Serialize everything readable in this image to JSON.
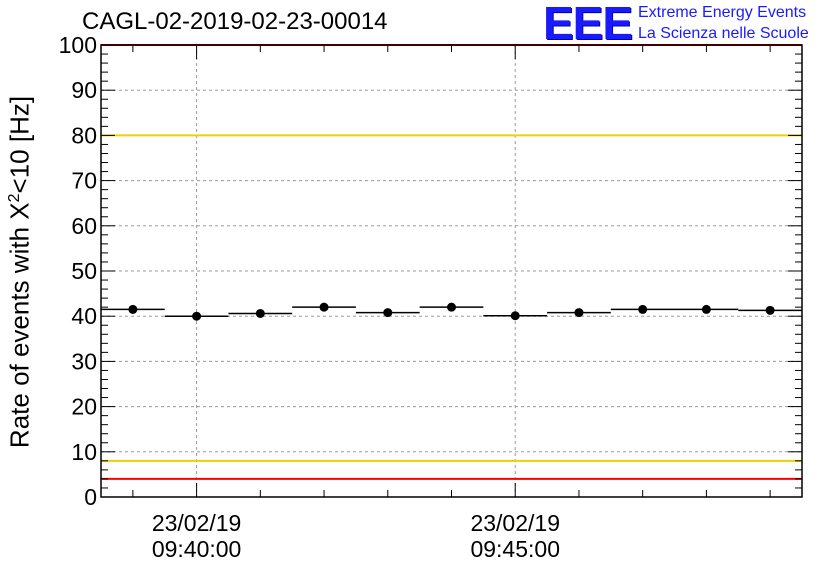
{
  "title": "CAGL-02-2019-02-23-00014",
  "logo": {
    "mark": "EEE",
    "line1": "Extreme Energy Events",
    "line2": "La Scienza nelle Scuole"
  },
  "colors": {
    "limit_line": "#ff0000",
    "warning_line": "#f0d000",
    "logo": "#1a1aff",
    "marker": "#000000"
  },
  "chart_data": {
    "type": "scatter",
    "title": "CAGL-02-2019-02-23-00014",
    "ylabel_parts": {
      "prefix": "Rate of events with X",
      "sup": "2",
      "suffix": "<10 [Hz]"
    },
    "ylim": [
      0,
      100
    ],
    "yticks": [
      0,
      10,
      20,
      30,
      40,
      50,
      60,
      70,
      80,
      90,
      100
    ],
    "x_time_range": [
      "09:38:30",
      "09:49:30"
    ],
    "xticks": [
      {
        "time": "09:40:00",
        "date_label": "23/02/19",
        "time_label": "09:40:00"
      },
      {
        "time": "09:45:00",
        "date_label": "23/02/19",
        "time_label": "09:45:00"
      }
    ],
    "grid": true,
    "bin_width_s": 60,
    "points": [
      {
        "t": "09:39:00",
        "y": 41.5
      },
      {
        "t": "09:40:00",
        "y": 40.0
      },
      {
        "t": "09:41:00",
        "y": 40.6
      },
      {
        "t": "09:42:00",
        "y": 42.0
      },
      {
        "t": "09:43:00",
        "y": 40.8
      },
      {
        "t": "09:44:00",
        "y": 42.0
      },
      {
        "t": "09:45:00",
        "y": 40.1
      },
      {
        "t": "09:46:00",
        "y": 40.8
      },
      {
        "t": "09:47:00",
        "y": 41.5
      },
      {
        "t": "09:48:00",
        "y": 41.5
      },
      {
        "t": "09:49:00",
        "y": 41.3
      }
    ],
    "reference_lines": [
      {
        "y": 100,
        "color": "#ff0000"
      },
      {
        "y": 80,
        "color": "#f0d000"
      },
      {
        "y": 8,
        "color": "#f0d000"
      },
      {
        "y": 4,
        "color": "#ff0000"
      }
    ]
  }
}
